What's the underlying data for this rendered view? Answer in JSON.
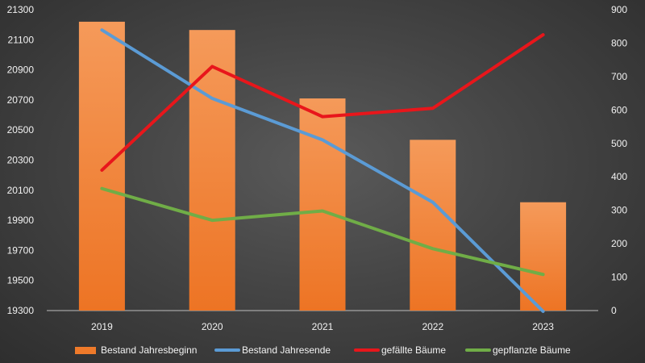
{
  "chart_data": {
    "type": "bar",
    "categories": [
      "2019",
      "2020",
      "2021",
      "2022",
      "2023"
    ],
    "primary_axis": {
      "min": 19300,
      "max": 21300,
      "ticks": [
        19300,
        19500,
        19700,
        19900,
        20100,
        20300,
        20500,
        20700,
        20900,
        21100,
        21300
      ]
    },
    "secondary_axis": {
      "min": 0,
      "max": 900,
      "ticks": [
        0,
        100,
        200,
        300,
        400,
        500,
        600,
        700,
        800,
        900
      ]
    },
    "series": [
      {
        "name": "Bestand Jahresbeginn",
        "kind": "bar",
        "axis": "primary",
        "color": "#ef7a2a",
        "values": [
          21220,
          21165,
          20710,
          20435,
          20020
        ]
      },
      {
        "name": "Bestand Jahresende",
        "kind": "line",
        "axis": "primary",
        "color": "#5b9bd5",
        "values": [
          21165,
          20710,
          20435,
          20020,
          19295
        ]
      },
      {
        "name": "gefällte Bäume",
        "kind": "line",
        "axis": "secondary",
        "color": "#e8161b",
        "values": [
          420,
          730,
          580,
          605,
          825
        ]
      },
      {
        "name": "gepflanzte Bäume",
        "kind": "line",
        "axis": "secondary",
        "color": "#70ad47",
        "values": [
          365,
          270,
          298,
          185,
          108
        ]
      }
    ],
    "grid": false,
    "legend_position": "bottom"
  }
}
